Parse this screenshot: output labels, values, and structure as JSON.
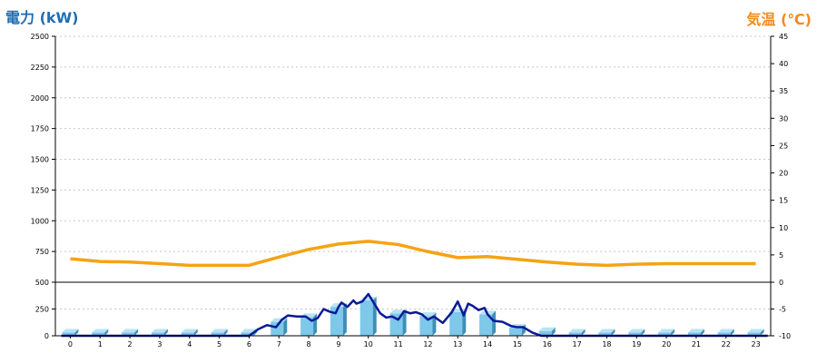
{
  "chart_data": {
    "type": "bar",
    "left_axis_title": "電力 (kW)",
    "right_axis_title": "気温 (℃)",
    "categories": [
      "0",
      "1",
      "2",
      "3",
      "4",
      "5",
      "6",
      "7",
      "8",
      "9",
      "10",
      "11",
      "12",
      "13",
      "14",
      "15",
      "16",
      "17",
      "18",
      "19",
      "20",
      "21",
      "22",
      "23"
    ],
    "left_axis": {
      "ticks": [
        0,
        250,
        500,
        750,
        1000,
        1250,
        1500,
        1750,
        2000,
        2250,
        2500
      ],
      "range": [
        0,
        2500
      ]
    },
    "right_axis": {
      "ticks": [
        -10,
        -5,
        0,
        5,
        10,
        15,
        20,
        25,
        30,
        35,
        40,
        45
      ],
      "range": [
        -10,
        45
      ]
    },
    "grid": true,
    "series": [
      {
        "kind": "bar",
        "axis": "left",
        "color": "#7ec8ea",
        "values": [
          30,
          30,
          30,
          30,
          30,
          30,
          30,
          130,
          175,
          270,
          330,
          210,
          185,
          220,
          200,
          75,
          45,
          30,
          30,
          30,
          30,
          30,
          30,
          30
        ]
      },
      {
        "kind": "line",
        "axis": "left",
        "color": "#0a1a96",
        "x": [
          -0.3,
          0,
          1,
          2,
          3,
          4,
          5,
          6,
          6.3,
          6.6,
          6.9,
          7.1,
          7.3,
          7.6,
          7.9,
          8.1,
          8.3,
          8.5,
          8.7,
          8.9,
          9.0,
          9.1,
          9.3,
          9.5,
          9.6,
          9.8,
          10.0,
          10.2,
          10.4,
          10.6,
          10.8,
          11.0,
          11.2,
          11.4,
          11.6,
          11.8,
          12.0,
          12.2,
          12.5,
          12.8,
          13.0,
          13.2,
          13.35,
          13.5,
          13.7,
          13.9,
          14.0,
          14.2,
          14.5,
          14.8,
          15.0,
          15.2,
          15.5,
          15.8,
          16.0,
          17,
          18,
          19,
          20,
          21,
          22,
          23,
          23.4
        ],
        "y": [
          0,
          0,
          0,
          0,
          0,
          0,
          0,
          0,
          60,
          100,
          80,
          150,
          190,
          180,
          180,
          140,
          165,
          250,
          225,
          210,
          270,
          310,
          270,
          330,
          300,
          320,
          390,
          300,
          210,
          170,
          180,
          150,
          230,
          210,
          220,
          200,
          150,
          180,
          120,
          220,
          320,
          190,
          300,
          280,
          240,
          260,
          200,
          140,
          130,
          90,
          80,
          80,
          30,
          0,
          0,
          0,
          0,
          0,
          0,
          0,
          0,
          0,
          0
        ]
      },
      {
        "kind": "line",
        "axis": "right",
        "color": "#f5a314",
        "values": [
          4.3,
          3.8,
          3.7,
          3.4,
          3.1,
          3.1,
          3.1,
          4.6,
          6.0,
          7.0,
          7.5,
          6.9,
          5.6,
          4.5,
          4.7,
          4.2,
          3.7,
          3.3,
          3.1,
          3.3,
          3.4,
          3.4,
          3.4,
          3.4
        ]
      }
    ]
  }
}
